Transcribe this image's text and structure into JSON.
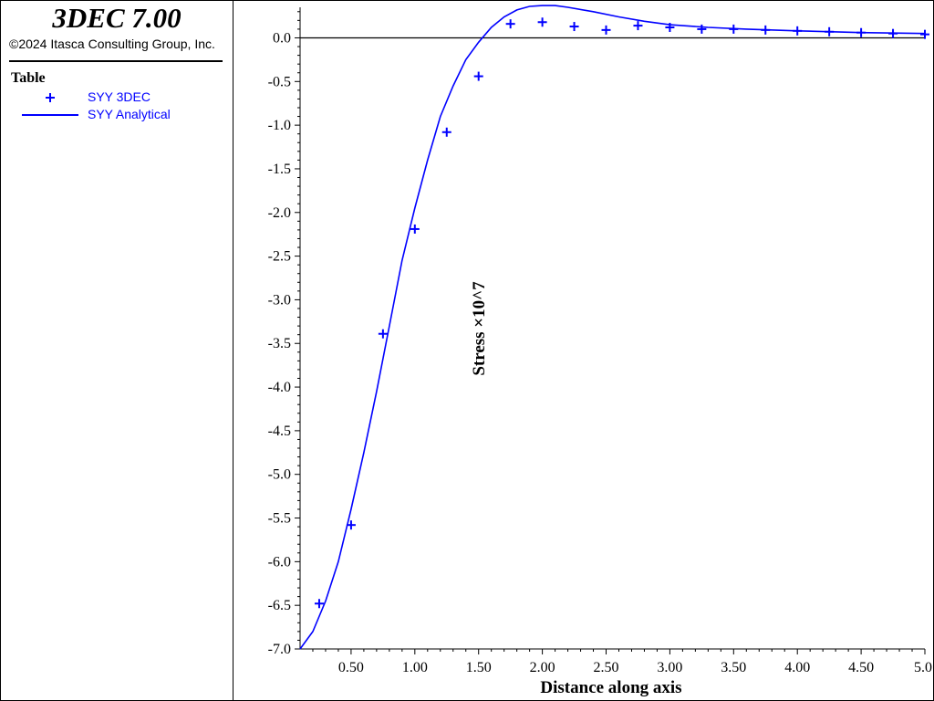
{
  "app": {
    "title": "3DEC 7.00",
    "copyright": "©2024 Itasca Consulting Group, Inc."
  },
  "legend": {
    "title": "Table",
    "entries": [
      {
        "label": "SYY 3DEC",
        "marker": "plus",
        "color": "#0000ff"
      },
      {
        "label": "SYY Analytical",
        "marker": "line",
        "color": "#0000ff"
      }
    ]
  },
  "chart_data": {
    "type": "line",
    "xlabel": "Distance along axis",
    "ylabel": "Stress ×10^7",
    "xlim": [
      0.1,
      5.0
    ],
    "ylim": [
      -7.0,
      0.35
    ],
    "xticks": [
      0.5,
      1.0,
      1.5,
      2.0,
      2.5,
      3.0,
      3.5,
      4.0,
      4.5,
      5.0
    ],
    "xtick_labels": [
      "0.50",
      "1.00",
      "1.50",
      "2.00",
      "2.50",
      "3.00",
      "3.50",
      "4.00",
      "4.50",
      "5.0"
    ],
    "yticks": [
      0.0,
      -0.5,
      -1.0,
      -1.5,
      -2.0,
      -2.5,
      -3.0,
      -3.5,
      -4.0,
      -4.5,
      -5.0,
      -5.5,
      -6.0,
      -6.5,
      -7.0
    ],
    "ytick_labels": [
      "0.0",
      "-0.5",
      "-1.0",
      "-1.5",
      "-2.0",
      "-2.5",
      "-3.0",
      "-3.5",
      "-4.0",
      "-4.5",
      "-5.0",
      "-5.5",
      "-6.0",
      "-6.5",
      "-7.0"
    ],
    "zero_line": true,
    "grid": false,
    "series": [
      {
        "name": "SYY 3DEC",
        "style": "marker-plus",
        "color": "#0000ff",
        "x": [
          0.25,
          0.5,
          0.75,
          1.0,
          1.25,
          1.5,
          1.75,
          2.0,
          2.25,
          2.5,
          2.75,
          3.0,
          3.25,
          3.5,
          3.75,
          4.0,
          4.25,
          4.5,
          4.75,
          5.0
        ],
        "y": [
          -6.48,
          -5.58,
          -3.39,
          -2.19,
          -1.08,
          -0.44,
          0.16,
          0.18,
          0.13,
          0.09,
          0.14,
          0.12,
          0.1,
          0.1,
          0.09,
          0.08,
          0.07,
          0.06,
          0.05,
          0.04
        ]
      },
      {
        "name": "SYY Analytical",
        "style": "line",
        "color": "#0000ff",
        "x": [
          0.1,
          0.2,
          0.3,
          0.4,
          0.5,
          0.6,
          0.7,
          0.8,
          0.9,
          1.0,
          1.1,
          1.2,
          1.3,
          1.4,
          1.5,
          1.6,
          1.7,
          1.8,
          1.9,
          2.0,
          2.1,
          2.2,
          2.4,
          2.6,
          2.8,
          3.0,
          3.3,
          3.6,
          4.0,
          4.5,
          5.0
        ],
        "y": [
          -7.0,
          -6.8,
          -6.45,
          -6.0,
          -5.4,
          -4.75,
          -4.05,
          -3.3,
          -2.55,
          -1.95,
          -1.4,
          -0.9,
          -0.55,
          -0.25,
          -0.05,
          0.12,
          0.24,
          0.32,
          0.36,
          0.37,
          0.37,
          0.35,
          0.3,
          0.24,
          0.19,
          0.15,
          0.12,
          0.1,
          0.08,
          0.06,
          0.05
        ]
      }
    ]
  }
}
